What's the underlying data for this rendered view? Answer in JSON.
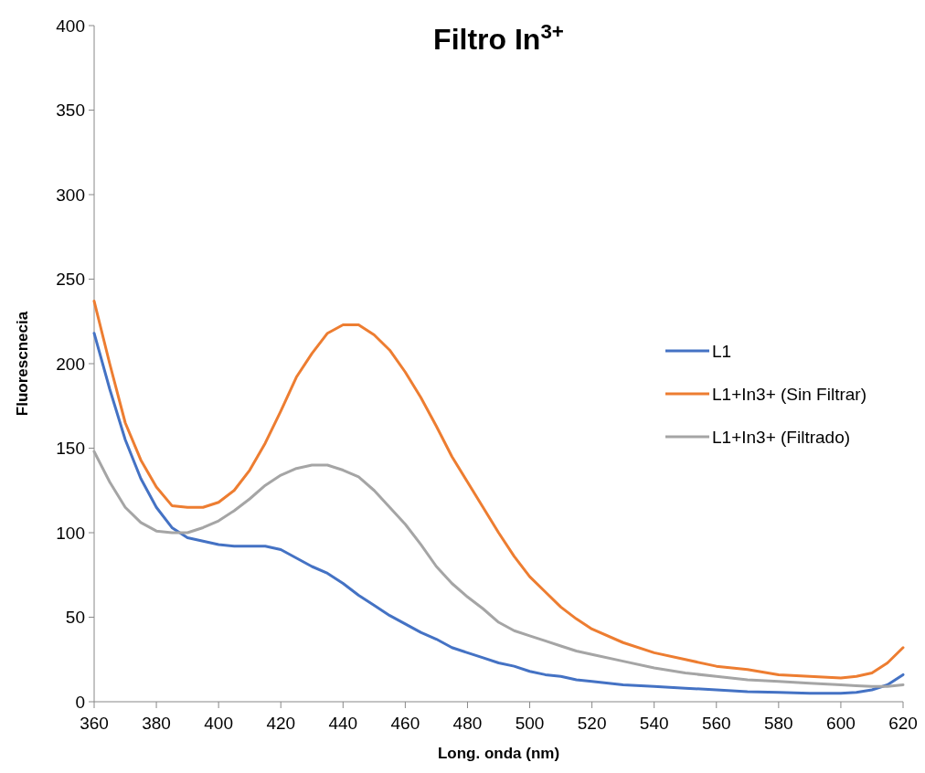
{
  "chart_data": {
    "type": "line",
    "title": "Filtro In$^{3+}$",
    "xlabel": "Long. onda (nm)",
    "ylabel": "Fluorescnecia",
    "x": [
      360,
      365,
      370,
      375,
      380,
      385,
      390,
      395,
      400,
      405,
      410,
      415,
      420,
      425,
      430,
      435,
      440,
      445,
      450,
      455,
      460,
      465,
      470,
      475,
      480,
      485,
      490,
      495,
      500,
      505,
      510,
      515,
      520,
      530,
      540,
      550,
      560,
      570,
      580,
      590,
      600,
      605,
      610,
      615,
      620
    ],
    "series": [
      {
        "name": "L1",
        "color": "#4472c4",
        "values": [
          218,
          185,
          155,
          132,
          115,
          103,
          97,
          95,
          93,
          92,
          92,
          92,
          90,
          85,
          80,
          76,
          70,
          63,
          57,
          51,
          46,
          41,
          37,
          32,
          29,
          26,
          23,
          21,
          18,
          16,
          15,
          13,
          12,
          10,
          9,
          8,
          7,
          6,
          5.5,
          5,
          5,
          5.5,
          7,
          10,
          16
        ]
      },
      {
        "name": "L1+In3+ (Sin Filtrar)",
        "color": "#ed7d31",
        "values": [
          237,
          200,
          165,
          143,
          127,
          116,
          115,
          115,
          118,
          125,
          137,
          153,
          172,
          192,
          206,
          218,
          223,
          223,
          217,
          208,
          195,
          180,
          163,
          145,
          130,
          115,
          100,
          86,
          74,
          65,
          56,
          49,
          43,
          35,
          29,
          25,
          21,
          19,
          16,
          15,
          14,
          15,
          17,
          23,
          32
        ]
      },
      {
        "name": "L1+In3+ (Filtrado)",
        "color": "#a5a5a5",
        "values": [
          148,
          130,
          115,
          106,
          101,
          100,
          100,
          103,
          107,
          113,
          120,
          128,
          134,
          138,
          140,
          140,
          137,
          133,
          125,
          115,
          105,
          93,
          80,
          70,
          62,
          55,
          47,
          42,
          39,
          36,
          33,
          30,
          28,
          24,
          20,
          17,
          15,
          13,
          12,
          11,
          10,
          9.5,
          9,
          9,
          10
        ]
      }
    ],
    "xlim": [
      360,
      620
    ],
    "xticks": [
      360,
      380,
      400,
      420,
      440,
      460,
      480,
      500,
      520,
      540,
      560,
      580,
      600,
      620
    ],
    "ylim": [
      0,
      400
    ],
    "yticks": [
      0,
      50,
      100,
      150,
      200,
      250,
      300,
      350,
      400
    ],
    "grid": false,
    "legend": "right",
    "marker": "none",
    "line_style": "solid"
  }
}
